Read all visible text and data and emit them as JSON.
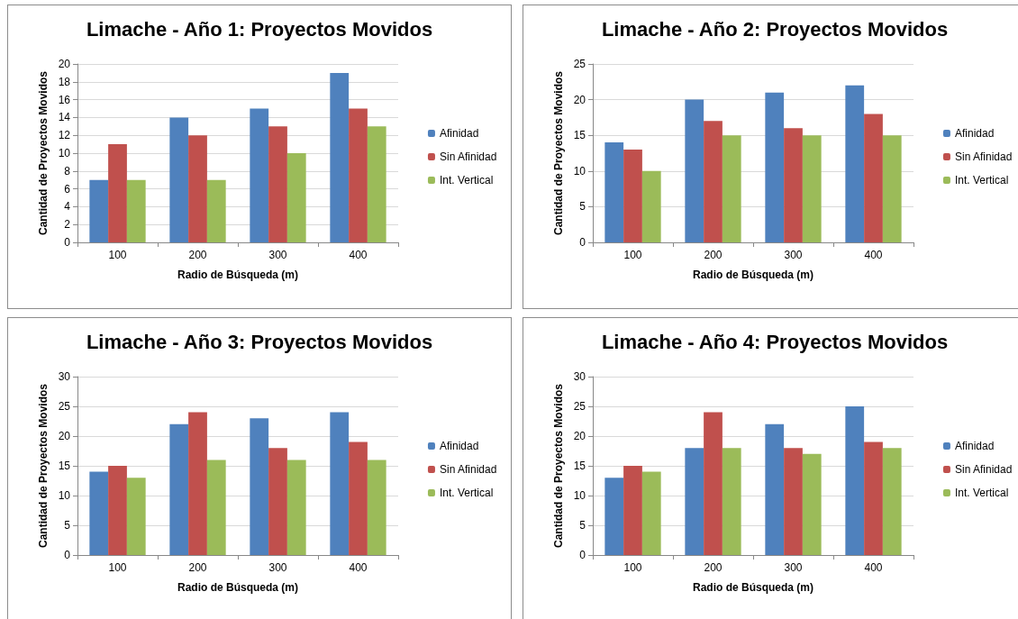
{
  "chart_data": [
    {
      "type": "bar",
      "title": "Limache - Año 1: Proyectos Movidos",
      "xlabel": "Radio de Búsqueda (m)",
      "ylabel": "Cantidad de Proyectos Movidos",
      "categories": [
        "100",
        "200",
        "300",
        "400"
      ],
      "series": [
        {
          "name": "Afinidad",
          "color": "#4f81bd",
          "values": [
            7,
            14,
            15,
            19
          ]
        },
        {
          "name": "Sin Afinidad",
          "color": "#c0504d",
          "values": [
            11,
            12,
            13,
            15
          ]
        },
        {
          "name": "Int. Vertical",
          "color": "#9bbb59",
          "values": [
            7,
            7,
            10,
            13
          ]
        }
      ],
      "ylim": [
        0,
        20
      ],
      "yticks": [
        0,
        2,
        4,
        6,
        8,
        10,
        12,
        14,
        16,
        18,
        20
      ],
      "grid": "y",
      "legend": "right"
    },
    {
      "type": "bar",
      "title": "Limache - Año 2: Proyectos Movidos",
      "xlabel": "Radio de Búsqueda (m)",
      "ylabel": "Cantidad de Proyectos Movidos",
      "categories": [
        "100",
        "200",
        "300",
        "400"
      ],
      "series": [
        {
          "name": "Afinidad",
          "color": "#4f81bd",
          "values": [
            14,
            20,
            21,
            22
          ]
        },
        {
          "name": "Sin Afinidad",
          "color": "#c0504d",
          "values": [
            13,
            17,
            16,
            18
          ]
        },
        {
          "name": "Int. Vertical",
          "color": "#9bbb59",
          "values": [
            10,
            15,
            15,
            15
          ]
        }
      ],
      "ylim": [
        0,
        25
      ],
      "yticks": [
        0,
        5,
        10,
        15,
        20,
        25
      ],
      "grid": "y",
      "legend": "right"
    },
    {
      "type": "bar",
      "title": "Limache - Año 3: Proyectos Movidos",
      "xlabel": "Radio de Búsqueda (m)",
      "ylabel": "Cantidad de Proyectos Movidos",
      "categories": [
        "100",
        "200",
        "300",
        "400"
      ],
      "series": [
        {
          "name": "Afinidad",
          "color": "#4f81bd",
          "values": [
            14,
            22,
            23,
            24
          ]
        },
        {
          "name": "Sin Afinidad",
          "color": "#c0504d",
          "values": [
            15,
            24,
            18,
            19
          ]
        },
        {
          "name": "Int. Vertical",
          "color": "#9bbb59",
          "values": [
            13,
            16,
            16,
            16
          ]
        }
      ],
      "ylim": [
        0,
        30
      ],
      "yticks": [
        0,
        5,
        10,
        15,
        20,
        25,
        30
      ],
      "grid": "y",
      "legend": "right"
    },
    {
      "type": "bar",
      "title": "Limache - Año 4: Proyectos Movidos",
      "xlabel": "Radio de Búsqueda (m)",
      "ylabel": "Cantidad de Proyectos Movidos",
      "categories": [
        "100",
        "200",
        "300",
        "400"
      ],
      "series": [
        {
          "name": "Afinidad",
          "color": "#4f81bd",
          "values": [
            13,
            18,
            22,
            25
          ]
        },
        {
          "name": "Sin Afinidad",
          "color": "#c0504d",
          "values": [
            15,
            24,
            18,
            19
          ]
        },
        {
          "name": "Int. Vertical",
          "color": "#9bbb59",
          "values": [
            14,
            18,
            17,
            18
          ]
        }
      ],
      "ylim": [
        0,
        30
      ],
      "yticks": [
        0,
        5,
        10,
        15,
        20,
        25,
        30
      ],
      "grid": "y",
      "legend": "right"
    }
  ]
}
